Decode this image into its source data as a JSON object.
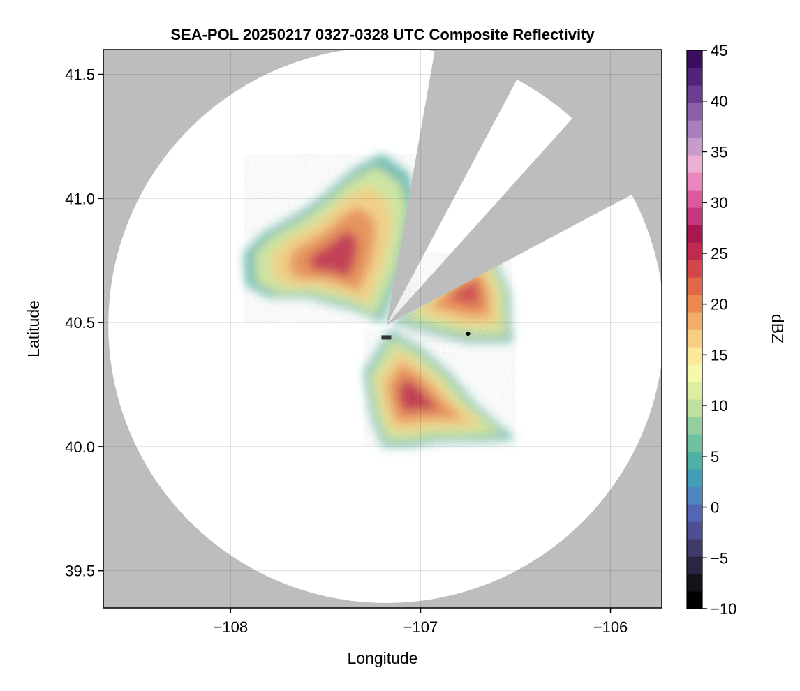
{
  "chart_data": {
    "type": "heatmap",
    "title": "SEA-POL 20250217 0327-0328 UTC Composite Reflectivity",
    "xlabel": "Longitude",
    "ylabel": "Latitude",
    "xlim": [
      -108.67,
      -105.73
    ],
    "ylim": [
      39.35,
      41.6
    ],
    "x_ticks": [
      {
        "value": -108,
        "label": "−108"
      },
      {
        "value": -107,
        "label": "−107"
      },
      {
        "value": -106,
        "label": "−106"
      }
    ],
    "y_ticks": [
      {
        "value": 39.5,
        "label": "39.5"
      },
      {
        "value": 40.0,
        "label": "40.0"
      },
      {
        "value": 40.5,
        "label": "40.5"
      },
      {
        "value": 41.0,
        "label": "41.0"
      },
      {
        "value": 41.5,
        "label": "41.5"
      }
    ],
    "grid": true,
    "background_color": "#bdbdbd",
    "radar": {
      "site_lon": -107.18,
      "site_lat": 40.49,
      "coverage_lat_radius": 1.12,
      "blocked_sectors_deg": [
        [
          10,
          28
        ],
        [
          42,
          62
        ]
      ],
      "site_marker": {
        "lon": -107.18,
        "lat": 40.44
      },
      "point_marker": {
        "lon": -106.75,
        "lat": 40.455
      }
    },
    "echo_regions": [
      {
        "name": "northwest",
        "center": [
          -107.45,
          40.75
        ],
        "peak_dbz": 28
      },
      {
        "name": "northeast",
        "center": [
          -106.75,
          40.63
        ],
        "peak_dbz": 26
      },
      {
        "name": "south",
        "center": [
          -107.05,
          40.2
        ],
        "peak_dbz": 28
      }
    ],
    "colorbar": {
      "label": "dBZ",
      "range": [
        -10,
        45
      ],
      "ticks": [
        {
          "value": -10,
          "label": "−10"
        },
        {
          "value": -5,
          "label": "−5"
        },
        {
          "value": 0,
          "label": "0"
        },
        {
          "value": 5,
          "label": "5"
        },
        {
          "value": 10,
          "label": "10"
        },
        {
          "value": 15,
          "label": "15"
        },
        {
          "value": 20,
          "label": "20"
        },
        {
          "value": 25,
          "label": "25"
        },
        {
          "value": 30,
          "label": "30"
        },
        {
          "value": 35,
          "label": "35"
        },
        {
          "value": 40,
          "label": "40"
        },
        {
          "value": 45,
          "label": "45"
        }
      ],
      "colors": [
        "#000000",
        "#14121a",
        "#2a2540",
        "#3e3a6a",
        "#4e4e94",
        "#5465b4",
        "#4d86c0",
        "#3f9fb8",
        "#4cb2a6",
        "#6ec19f",
        "#95cf9f",
        "#bde0a1",
        "#dcee9f",
        "#f6f8ae",
        "#fbe89a",
        "#f8cf82",
        "#f2ad66",
        "#ea8a50",
        "#e06848",
        "#d3474b",
        "#c02a4e",
        "#a8174f",
        "#c5367e",
        "#db5a9c",
        "#e886bd",
        "#ecaed3",
        "#c79ccd",
        "#a87ebd",
        "#8a5ea8",
        "#6c3e92",
        "#52237a",
        "#3a0f60"
      ]
    }
  }
}
